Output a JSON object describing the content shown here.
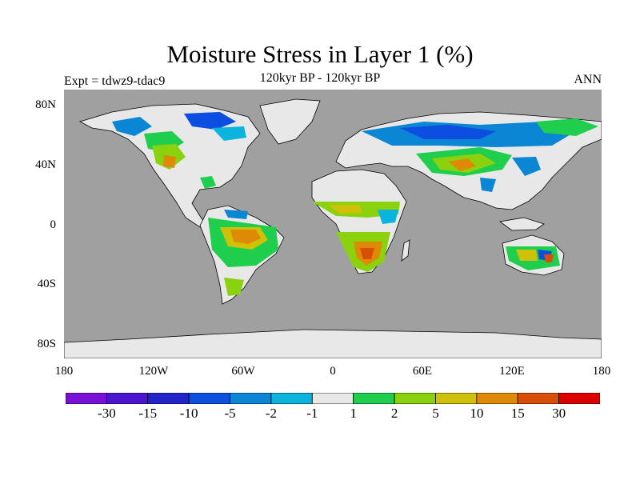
{
  "title": "Moisture Stress in Layer 1 (%)",
  "subtitle": "120kyr BP - 120kyr BP",
  "expt_label": "Expt = tdwz9-tdac9",
  "season": "ANN",
  "colors": {
    "ocean": "#a0a0a0",
    "land_neutral": "#e8e8e8",
    "coastline": "#000000"
  },
  "lat_axis": [
    {
      "label": "80N",
      "value": 80
    },
    {
      "label": "40N",
      "value": 40
    },
    {
      "label": "0",
      "value": 0
    },
    {
      "label": "40S",
      "value": -40
    },
    {
      "label": "80S",
      "value": -80
    }
  ],
  "lon_axis": [
    {
      "label": "180",
      "value": -180
    },
    {
      "label": "120W",
      "value": -120
    },
    {
      "label": "60W",
      "value": -60
    },
    {
      "label": "0",
      "value": 0
    },
    {
      "label": "60E",
      "value": 60
    },
    {
      "label": "120E",
      "value": 120
    },
    {
      "label": "180",
      "value": 180
    }
  ],
  "legend": {
    "colors": [
      "#7a0fd6",
      "#4a14d0",
      "#2323cc",
      "#0b4ee0",
      "#0b86d4",
      "#0bb4dc",
      "#e8e8e8",
      "#1ece4c",
      "#8ad20e",
      "#cfc00a",
      "#de8a06",
      "#d84d08",
      "#dd0000"
    ],
    "labels": [
      "-30",
      "-15",
      "-10",
      "-5",
      "-2",
      "-1",
      "1",
      "2",
      "5",
      "10",
      "15",
      "30"
    ]
  }
}
